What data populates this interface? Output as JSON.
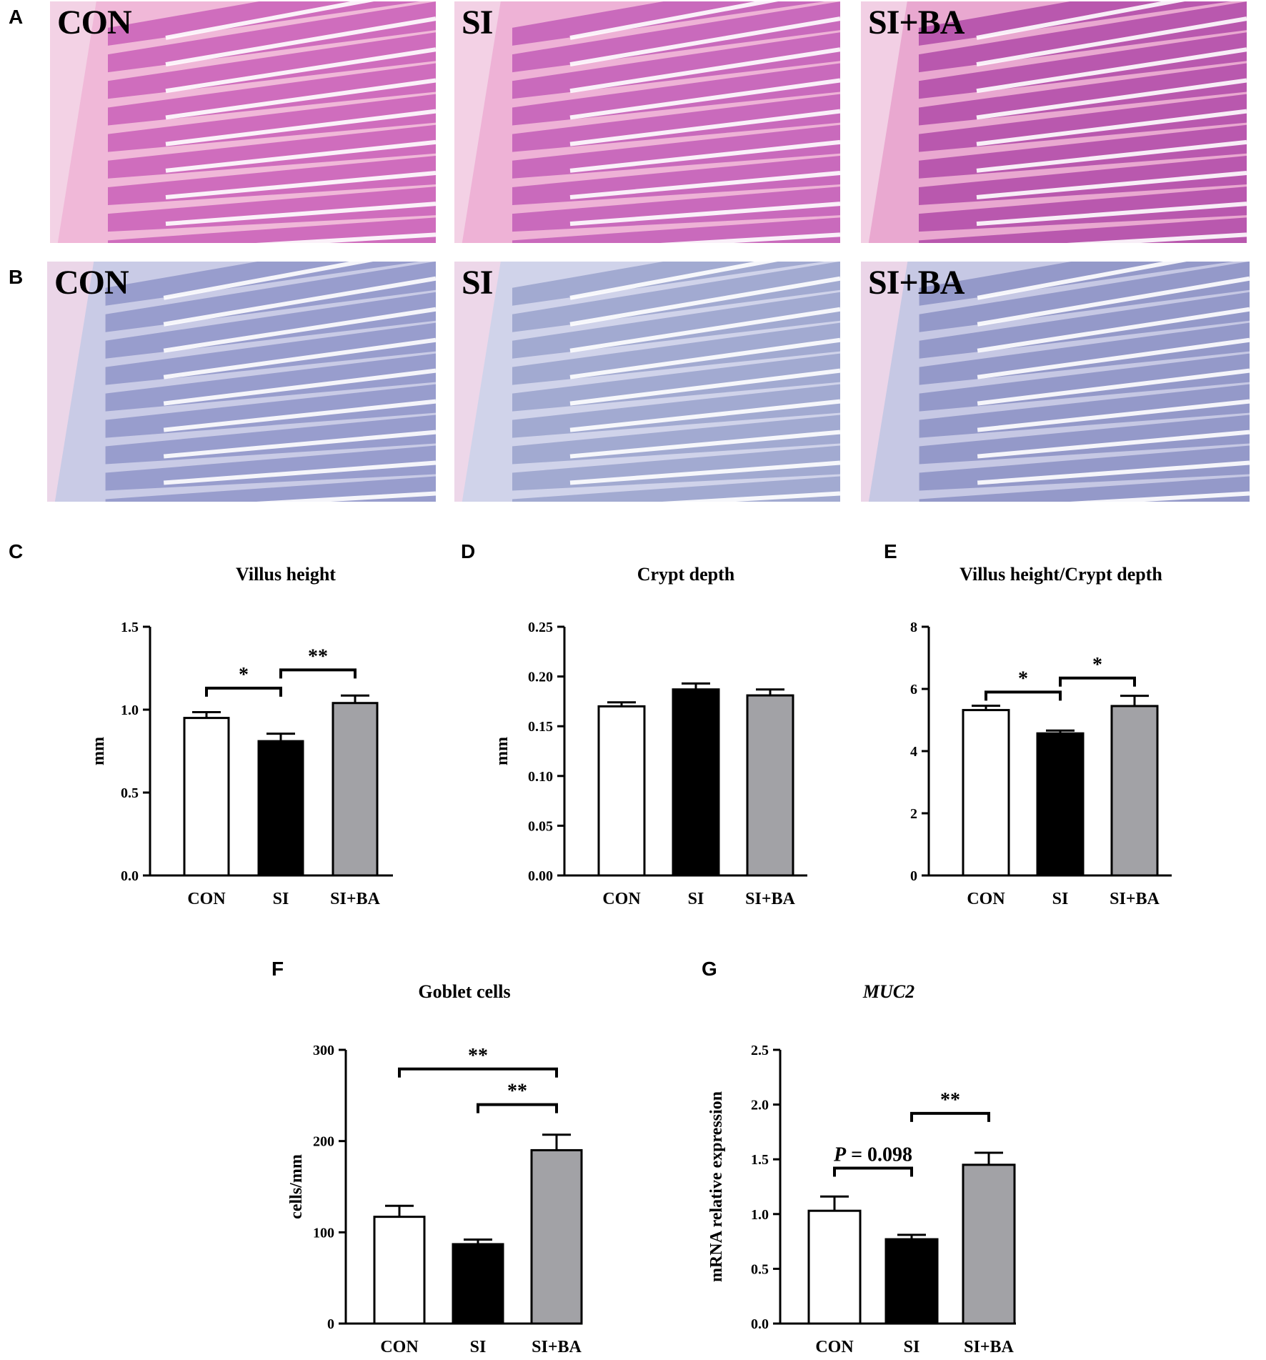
{
  "panels": {
    "a": "A",
    "b": "B",
    "c": "C",
    "d": "D",
    "e": "E",
    "f": "F",
    "g": "G"
  },
  "micrographs": {
    "he": [
      {
        "label": "CON",
        "stain": "#c95fb8",
        "bg": "#f0b8d8"
      },
      {
        "label": "SI",
        "stain": "#c25db7",
        "bg": "#eeb2d6"
      },
      {
        "label": "SI+BA",
        "stain": "#b04aa8",
        "bg": "#e9a8d0"
      }
    ],
    "pas": [
      {
        "label": "CON",
        "stain": "#8f95c8",
        "bg": "#c9cbe6"
      },
      {
        "label": "SI",
        "stain": "#9aa2cd",
        "bg": "#d0d3ea"
      },
      {
        "label": "SI+BA",
        "stain": "#8b90c4",
        "bg": "#c6c8e4"
      }
    ]
  },
  "colors": {
    "CON": "#ffffff",
    "SI": "#000000",
    "SI+BA": "#a2a2a6"
  },
  "chart_data": [
    {
      "id": "C",
      "type": "bar",
      "title": "Villus height",
      "ylabel": "mm",
      "categories": [
        "CON",
        "SI",
        "SI+BA"
      ],
      "values": [
        0.95,
        0.81,
        1.04
      ],
      "errors": [
        0.035,
        0.045,
        0.045
      ],
      "ylim": [
        0,
        1.5
      ],
      "ticks": [
        "0.0",
        "0.5",
        "1.0",
        "1.5"
      ],
      "tickValues": [
        0,
        0.5,
        1.0,
        1.5
      ],
      "significance": [
        {
          "from": 0,
          "to": 1,
          "text": "*",
          "level": 1.13
        },
        {
          "from": 1,
          "to": 2,
          "text": "**",
          "level": 1.24
        }
      ]
    },
    {
      "id": "D",
      "type": "bar",
      "title": "Crypt depth",
      "ylabel": "mm",
      "categories": [
        "CON",
        "SI",
        "SI+BA"
      ],
      "values": [
        0.17,
        0.187,
        0.181
      ],
      "errors": [
        0.004,
        0.006,
        0.006
      ],
      "ylim": [
        0,
        0.25
      ],
      "ticks": [
        "0.00",
        "0.05",
        "0.10",
        "0.15",
        "0.20",
        "0.25"
      ],
      "tickValues": [
        0,
        0.05,
        0.1,
        0.15,
        0.2,
        0.25
      ],
      "significance": []
    },
    {
      "id": "E",
      "type": "bar",
      "title": "Villus height/Crypt depth",
      "ylabel": "",
      "categories": [
        "CON",
        "SI",
        "SI+BA"
      ],
      "values": [
        5.32,
        4.57,
        5.45
      ],
      "errors": [
        0.14,
        0.09,
        0.33
      ],
      "ylim": [
        0,
        8
      ],
      "ticks": [
        "0",
        "2",
        "4",
        "6",
        "8"
      ],
      "tickValues": [
        0,
        2,
        4,
        6,
        8
      ],
      "significance": [
        {
          "from": 0,
          "to": 1,
          "text": "*",
          "level": 5.9
        },
        {
          "from": 1,
          "to": 2,
          "text": "*",
          "level": 6.35
        }
      ]
    },
    {
      "id": "F",
      "type": "bar",
      "title": "Goblet cells",
      "ylabel": "cells/mm",
      "categories": [
        "CON",
        "SI",
        "SI+BA"
      ],
      "values": [
        117,
        87,
        190
      ],
      "errors": [
        12,
        5,
        17
      ],
      "ylim": [
        0,
        300
      ],
      "ticks": [
        "0",
        "100",
        "200",
        "300"
      ],
      "tickValues": [
        0,
        100,
        200,
        300
      ],
      "significance": [
        {
          "from": 0,
          "to": 2,
          "text": "**",
          "level": 279
        },
        {
          "from": 1,
          "to": 2,
          "text": "**",
          "level": 240
        }
      ]
    },
    {
      "id": "G",
      "type": "bar",
      "title": "MUC2",
      "titleItalic": true,
      "ylabel": "mRNA relative expression",
      "categories": [
        "CON",
        "SI",
        "SI+BA"
      ],
      "values": [
        1.03,
        0.77,
        1.45
      ],
      "errors": [
        0.13,
        0.04,
        0.11
      ],
      "ylim": [
        0,
        2.5
      ],
      "ticks": [
        "0.0",
        "0.5",
        "1.0",
        "1.5",
        "2.0",
        "2.5"
      ],
      "tickValues": [
        0,
        0.5,
        1.0,
        1.5,
        2.0,
        2.5
      ],
      "significance": [
        {
          "from": 0,
          "to": 1,
          "text": "P = 0.098",
          "pvalue": true,
          "level": 1.42
        },
        {
          "from": 1,
          "to": 2,
          "text": "**",
          "level": 1.92
        }
      ]
    }
  ]
}
